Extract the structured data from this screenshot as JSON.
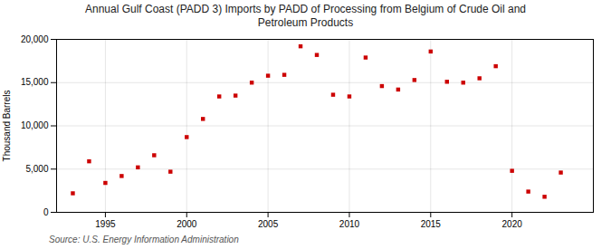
{
  "chart_data": {
    "type": "scatter",
    "title": "Annual Gulf Coast (PADD 3) Imports by PADD of Processing from Belgium of Crude Oil and\nPetroleum Products",
    "ylabel": "Thousand Barrels",
    "annotations": [
      "Source: U.S. Energy Information Administration"
    ],
    "x": [
      1993,
      1994,
      1995,
      1996,
      1997,
      1998,
      1999,
      2000,
      2001,
      2002,
      2003,
      2004,
      2005,
      2006,
      2007,
      2008,
      2009,
      2010,
      2011,
      2012,
      2013,
      2014,
      2015,
      2016,
      2017,
      2018,
      2019,
      2020,
      2021,
      2022,
      2023
    ],
    "values": [
      2200,
      5900,
      3400,
      4200,
      5200,
      6600,
      4700,
      8700,
      10800,
      13400,
      13500,
      15000,
      15800,
      15900,
      19200,
      18200,
      13600,
      13400,
      17900,
      14600,
      14200,
      15300,
      18600,
      15100,
      15000,
      15500,
      16900,
      4800,
      2400,
      1800,
      4600
    ],
    "color": "#cc0000",
    "marker": "square",
    "xlim": [
      1992,
      2025
    ],
    "ylim": [
      0,
      20000
    ],
    "xticks": [
      1995,
      2000,
      2005,
      2010,
      2015,
      2020
    ],
    "yticks": [
      0,
      {
        "value": 5000,
        "label": "5,000"
      },
      {
        "value": 10000,
        "label": "10,000"
      },
      {
        "value": 15000,
        "label": "15,000"
      },
      {
        "value": 20000,
        "label": "20,000"
      }
    ],
    "grid": true
  }
}
